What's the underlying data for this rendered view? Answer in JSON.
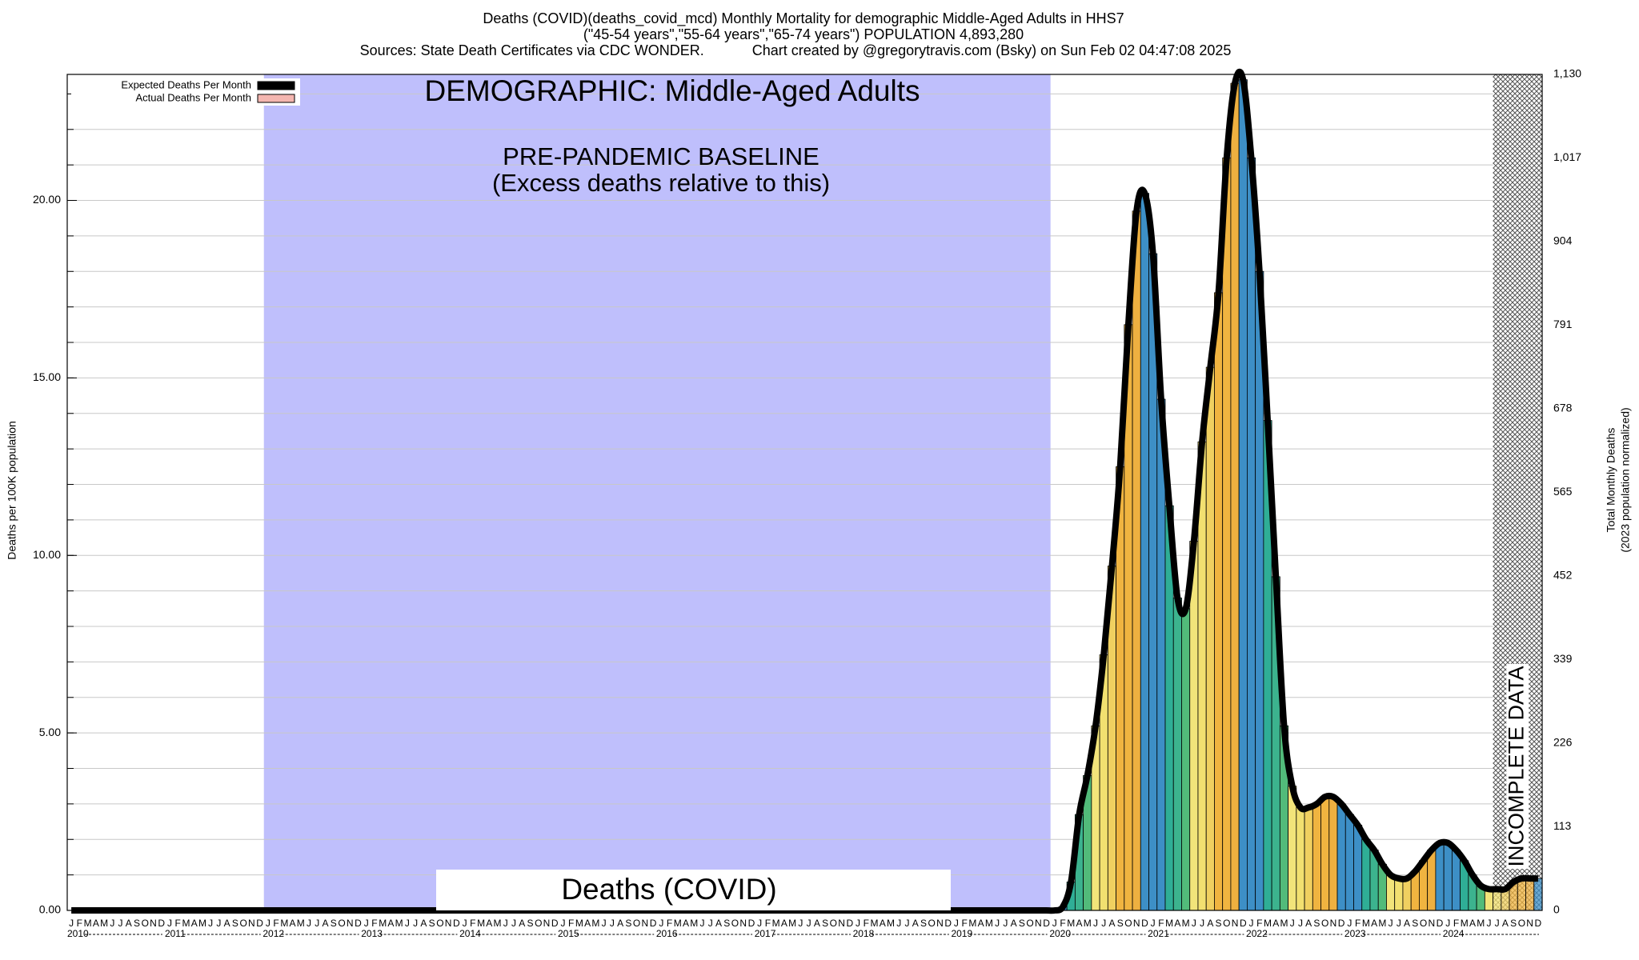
{
  "chart_data": {
    "type": "bar",
    "title_lines": [
      "Deaths (COVID)(deaths_covid_mcd) Monthly Mortality for demographic Middle-Aged Adults in HHS7",
      "(\"45-54 years\",\"55-64 years\",\"65-74 years\") POPULATION 4,893,280",
      "Sources: State Death Certificates via CDC WONDER.            Chart created by @gregorytravis.com (Bsky) on Sun Feb 02 04:47:08 2025"
    ],
    "demographic_label": "DEMOGRAPHIC: Middle-Aged Adults",
    "baseline_label": [
      "PRE-PANDEMIC BASELINE",
      "(Excess deaths relative to this)"
    ],
    "baseline_years": [
      2012,
      2019
    ],
    "measure_label": "Deaths (COVID)",
    "incomplete_label": "INCOMPLETE DATA",
    "incomplete_from": "2024-07",
    "y_label": "Deaths per 100K population",
    "y2_label": [
      "Total Monthly Deaths",
      "(2023 population normalized)"
    ],
    "legend": [
      {
        "name": "Expected Deaths Per Month",
        "color": "#000000"
      },
      {
        "name": "Actual Deaths Per Month",
        "color": "#f4b6b0"
      }
    ],
    "years": [
      2010,
      2011,
      2012,
      2013,
      2014,
      2015,
      2016,
      2017,
      2018,
      2019,
      2020,
      2021,
      2022,
      2023,
      2024
    ],
    "months": [
      "J",
      "F",
      "M",
      "A",
      "M",
      "J",
      "J",
      "A",
      "S",
      "O",
      "N",
      "D"
    ],
    "month_colors": [
      "#3d8fc6",
      "#3d8fc6",
      "#2fae96",
      "#3cb38e",
      "#52bb7a",
      "#f2e47a",
      "#f2e070",
      "#f0d060",
      "#f0b440",
      "#f0b440",
      "#eeb040",
      "#3d8fc6"
    ],
    "values": [
      0,
      0,
      0,
      0,
      0,
      0,
      0,
      0,
      0,
      0,
      0,
      0,
      0,
      0,
      0,
      0,
      0,
      0,
      0,
      0,
      0,
      0,
      0,
      0,
      0,
      0,
      0,
      0,
      0,
      0,
      0,
      0,
      0,
      0,
      0,
      0,
      0,
      0,
      0,
      0,
      0,
      0,
      0,
      0,
      0,
      0,
      0,
      0,
      0,
      0,
      0,
      0,
      0,
      0,
      0,
      0,
      0,
      0,
      0,
      0,
      0,
      0,
      0,
      0,
      0,
      0,
      0,
      0,
      0,
      0,
      0,
      0,
      0,
      0,
      0,
      0,
      0,
      0,
      0,
      0,
      0,
      0,
      0,
      0,
      0,
      0,
      0,
      0,
      0,
      0,
      0,
      0,
      0,
      0,
      0,
      0,
      0,
      0,
      0,
      0,
      0,
      0,
      0,
      0,
      0,
      0,
      0,
      0,
      0,
      0,
      0,
      0,
      0,
      0,
      0,
      0,
      0,
      0,
      0,
      0,
      0,
      0.1,
      0.8,
      2.7,
      3.8,
      5.2,
      7.2,
      9.7,
      12.5,
      16.5,
      19.7,
      20.2,
      18.5,
      14.4,
      11.4,
      8.8,
      8.5,
      10.4,
      13.2,
      15.3,
      17.4,
      21.2,
      23.3,
      23.4,
      21.2,
      18,
      13.8,
      9.4,
      5.2,
      3.5,
      2.9,
      2.9,
      3.0,
      3.2,
      3.2,
      3.0,
      2.7,
      2.4,
      2.0,
      1.7,
      1.3,
      1.0,
      0.9,
      0.9,
      1.1,
      1.4,
      1.7,
      1.9,
      1.9,
      1.7,
      1.4,
      1.0,
      0.7,
      0.6,
      0.6,
      0.6,
      0.8,
      0.9,
      0.9,
      0.9
    ],
    "ylim": [
      0,
      23.55
    ],
    "yticks": [
      {
        "value": 0,
        "label": "0.00"
      },
      {
        "value": 5,
        "label": "5.00"
      },
      {
        "value": 10,
        "label": "10.00"
      },
      {
        "value": 15,
        "label": "15.00"
      },
      {
        "value": 20,
        "label": "20.00"
      }
    ],
    "ygrid": [
      1,
      2,
      3,
      4,
      5,
      6,
      7,
      8,
      9,
      10,
      11,
      12,
      13,
      14,
      15,
      16,
      17,
      18,
      19,
      20,
      21,
      22,
      23
    ],
    "y2lim": [
      0,
      1130
    ],
    "y2ticks": [
      0,
      113,
      226,
      339,
      452,
      565,
      678,
      791,
      904,
      {
        "value": 1017,
        "label": "1,017"
      },
      {
        "value": 1130,
        "label": "1,130"
      }
    ]
  }
}
